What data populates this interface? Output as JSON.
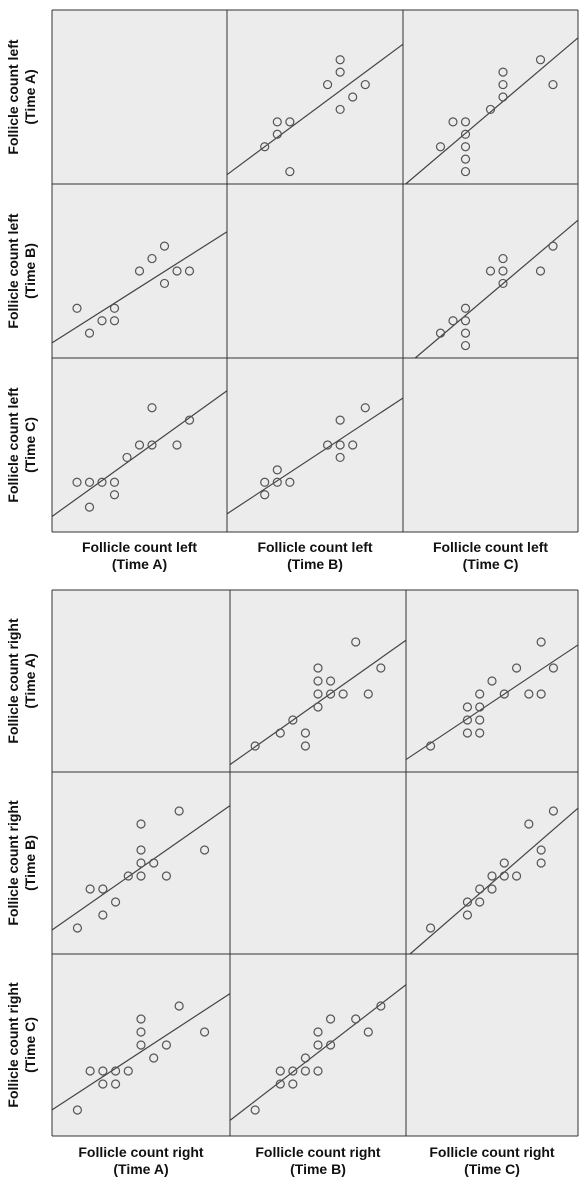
{
  "chart_data": [
    {
      "type": "scatter",
      "title": "",
      "variables": [
        "Follicle count left (Time A)",
        "Follicle count left (Time B)",
        "Follicle count left (Time C)"
      ],
      "row_labels": [
        [
          "Follicle count left",
          "(Time A)"
        ],
        [
          "Follicle count left",
          "(Time B)"
        ],
        [
          "Follicle count left",
          "(Time C)"
        ]
      ],
      "col_labels": [
        [
          "Follicle count left",
          "(Time A)"
        ],
        [
          "Follicle count left",
          "(Time B)"
        ],
        [
          "Follicle count left",
          "(Time C)"
        ]
      ],
      "grid": false,
      "fit_line": true,
      "legend": "none",
      "panel_range": [
        0,
        14
      ],
      "cells": [
        {
          "row": 0,
          "col": 1,
          "points": [
            [
              3,
              3
            ],
            [
              4,
              4
            ],
            [
              4,
              5
            ],
            [
              5,
              5
            ],
            [
              5,
              1
            ],
            [
              8,
              8
            ],
            [
              9,
              9
            ],
            [
              9,
              10
            ],
            [
              10,
              7
            ],
            [
              9,
              6
            ],
            [
              11,
              8
            ]
          ]
        },
        {
          "row": 0,
          "col": 2,
          "points": [
            [
              3,
              3
            ],
            [
              4,
              5
            ],
            [
              5,
              5
            ],
            [
              5,
              4
            ],
            [
              5,
              3
            ],
            [
              5,
              2
            ],
            [
              5,
              1
            ],
            [
              7,
              6
            ],
            [
              8,
              8
            ],
            [
              8,
              7
            ],
            [
              8,
              9
            ],
            [
              11,
              10
            ],
            [
              12,
              8
            ]
          ]
        },
        {
          "row": 1,
          "col": 0,
          "points": [
            [
              2,
              4
            ],
            [
              3,
              2
            ],
            [
              4,
              3
            ],
            [
              5,
              3
            ],
            [
              5,
              4
            ],
            [
              7,
              7
            ],
            [
              8,
              8
            ],
            [
              9,
              9
            ],
            [
              9,
              6
            ],
            [
              10,
              7
            ],
            [
              11,
              7
            ]
          ]
        },
        {
          "row": 1,
          "col": 2,
          "points": [
            [
              3,
              2
            ],
            [
              4,
              3
            ],
            [
              5,
              4
            ],
            [
              5,
              3
            ],
            [
              5,
              2
            ],
            [
              5,
              1
            ],
            [
              7,
              7
            ],
            [
              8,
              7
            ],
            [
              8,
              6
            ],
            [
              8,
              8
            ],
            [
              11,
              7
            ],
            [
              12,
              9
            ]
          ]
        },
        {
          "row": 2,
          "col": 0,
          "points": [
            [
              2,
              4
            ],
            [
              3,
              4
            ],
            [
              3,
              2
            ],
            [
              4,
              4
            ],
            [
              5,
              4
            ],
            [
              5,
              3
            ],
            [
              6,
              6
            ],
            [
              7,
              7
            ],
            [
              8,
              7
            ],
            [
              8,
              10
            ],
            [
              10,
              7
            ],
            [
              11,
              9
            ]
          ]
        },
        {
          "row": 2,
          "col": 1,
          "points": [
            [
              3,
              3
            ],
            [
              3,
              4
            ],
            [
              4,
              4
            ],
            [
              5,
              4
            ],
            [
              4,
              5
            ],
            [
              8,
              7
            ],
            [
              9,
              7
            ],
            [
              9,
              6
            ],
            [
              10,
              7
            ],
            [
              9,
              9
            ],
            [
              11,
              10
            ]
          ]
        }
      ]
    },
    {
      "type": "scatter",
      "title": "",
      "variables": [
        "Follicle count right (Time A)",
        "Follicle count right (Time B)",
        "Follicle count right (Time C)"
      ],
      "row_labels": [
        [
          "Follicle count right",
          "(Time A)"
        ],
        [
          "Follicle count right",
          "(Time B)"
        ],
        [
          "Follicle count right",
          "(Time C)"
        ]
      ],
      "col_labels": [
        [
          "Follicle count right",
          "(Time A)"
        ],
        [
          "Follicle count right",
          "(Time B)"
        ],
        [
          "Follicle count right",
          "(Time C)"
        ]
      ],
      "grid": false,
      "fit_line": true,
      "legend": "none",
      "panel_range": [
        0,
        14
      ],
      "cells": [
        {
          "row": 0,
          "col": 1,
          "points": [
            [
              2,
              2
            ],
            [
              4,
              3
            ],
            [
              5,
              4
            ],
            [
              6,
              3
            ],
            [
              6,
              2
            ],
            [
              7,
              5
            ],
            [
              7,
              6
            ],
            [
              7,
              7
            ],
            [
              7,
              8
            ],
            [
              8,
              6
            ],
            [
              8,
              7
            ],
            [
              9,
              6
            ],
            [
              10,
              10
            ],
            [
              11,
              6
            ],
            [
              12,
              8
            ]
          ]
        },
        {
          "row": 0,
          "col": 2,
          "points": [
            [
              2,
              2
            ],
            [
              5,
              3
            ],
            [
              5,
              4
            ],
            [
              5,
              5
            ],
            [
              6,
              3
            ],
            [
              6,
              4
            ],
            [
              6,
              5
            ],
            [
              6,
              6
            ],
            [
              7,
              7
            ],
            [
              8,
              6
            ],
            [
              9,
              8
            ],
            [
              10,
              6
            ],
            [
              11,
              6
            ],
            [
              11,
              10
            ],
            [
              12,
              8
            ]
          ]
        },
        {
          "row": 1,
          "col": 0,
          "points": [
            [
              2,
              2
            ],
            [
              3,
              5
            ],
            [
              4,
              5
            ],
            [
              4,
              3
            ],
            [
              5,
              4
            ],
            [
              6,
              6
            ],
            [
              7,
              6
            ],
            [
              7,
              7
            ],
            [
              7,
              8
            ],
            [
              7,
              10
            ],
            [
              8,
              7
            ],
            [
              9,
              6
            ],
            [
              10,
              11
            ],
            [
              12,
              8
            ]
          ]
        },
        {
          "row": 1,
          "col": 2,
          "points": [
            [
              2,
              2
            ],
            [
              5,
              3
            ],
            [
              5,
              4
            ],
            [
              6,
              4
            ],
            [
              6,
              5
            ],
            [
              7,
              6
            ],
            [
              7,
              5
            ],
            [
              8,
              7
            ],
            [
              8,
              6
            ],
            [
              9,
              6
            ],
            [
              10,
              10
            ],
            [
              11,
              8
            ],
            [
              11,
              7
            ],
            [
              12,
              11
            ]
          ]
        },
        {
          "row": 2,
          "col": 0,
          "points": [
            [
              2,
              2
            ],
            [
              3,
              5
            ],
            [
              4,
              5
            ],
            [
              4,
              4
            ],
            [
              5,
              5
            ],
            [
              5,
              4
            ],
            [
              6,
              5
            ],
            [
              7,
              7
            ],
            [
              7,
              8
            ],
            [
              7,
              9
            ],
            [
              8,
              6
            ],
            [
              9,
              7
            ],
            [
              10,
              10
            ],
            [
              12,
              8
            ]
          ]
        },
        {
          "row": 2,
          "col": 1,
          "points": [
            [
              2,
              2
            ],
            [
              4,
              4
            ],
            [
              4,
              5
            ],
            [
              5,
              5
            ],
            [
              5,
              4
            ],
            [
              6,
              5
            ],
            [
              6,
              6
            ],
            [
              7,
              7
            ],
            [
              7,
              8
            ],
            [
              7,
              5
            ],
            [
              8,
              7
            ],
            [
              8,
              9
            ],
            [
              10,
              9
            ],
            [
              11,
              8
            ],
            [
              12,
              10
            ]
          ]
        }
      ]
    }
  ]
}
